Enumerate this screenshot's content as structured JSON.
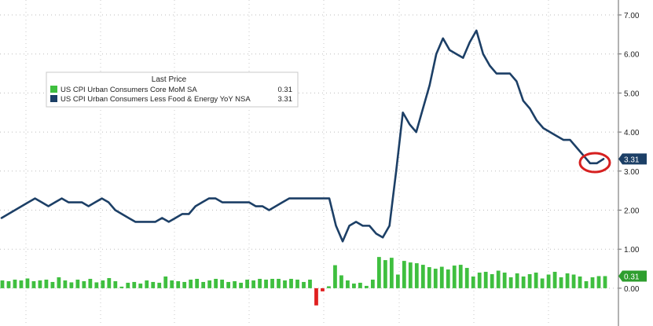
{
  "chart_data": {
    "type": "line",
    "title": "",
    "xlabel": "",
    "ylabel": "",
    "ylim": [
      -1.0,
      7.0
    ],
    "y_ticks": [
      "7.00",
      "6.00",
      "5.00",
      "4.00",
      "3.00",
      "2.00",
      "1.00",
      "0.00"
    ],
    "grid": true,
    "legend": {
      "title": "Last Price",
      "placement": "top-left",
      "entries": [
        {
          "label": "US CPI Urban Consumers Core MoM SA",
          "value": "0.31",
          "color": "#3fbf3f"
        },
        {
          "label": "US CPI Urban Consumers Less Food & Energy YoY NSA",
          "value": "3.31",
          "color": "#1c3f66"
        }
      ]
    },
    "last_value_tags": [
      {
        "text": "3.31",
        "value": 3.31,
        "color": "#1c3f66"
      },
      {
        "text": "0.31",
        "value": 0.31,
        "color": "#2e9e2e"
      }
    ],
    "annotation": {
      "type": "circle",
      "color": "#d62020",
      "near_value": 3.25
    },
    "series": [
      {
        "name": "US CPI Urban Consumers Less Food & Energy YoY NSA",
        "kind": "line",
        "color": "#1c3f66",
        "values": [
          1.8,
          1.9,
          2.0,
          2.1,
          2.2,
          2.3,
          2.2,
          2.1,
          2.2,
          2.3,
          2.2,
          2.2,
          2.2,
          2.1,
          2.2,
          2.3,
          2.2,
          2.0,
          1.9,
          1.8,
          1.7,
          1.7,
          1.7,
          1.7,
          1.8,
          1.7,
          1.8,
          1.9,
          1.9,
          2.1,
          2.2,
          2.3,
          2.3,
          2.2,
          2.2,
          2.2,
          2.2,
          2.2,
          2.1,
          2.1,
          2.0,
          2.1,
          2.2,
          2.3,
          2.3,
          2.3,
          2.3,
          2.3,
          2.3,
          2.3,
          1.6,
          1.2,
          1.6,
          1.7,
          1.6,
          1.6,
          1.4,
          1.3,
          1.6,
          3.0,
          4.5,
          4.2,
          4.0,
          4.6,
          5.2,
          6.0,
          6.4,
          6.1,
          6.0,
          5.9,
          6.3,
          6.6,
          6.0,
          5.7,
          5.5,
          5.5,
          5.5,
          5.3,
          4.8,
          4.6,
          4.3,
          4.1,
          4.0,
          3.9,
          3.8,
          3.8,
          3.6,
          3.4,
          3.2,
          3.2,
          3.31
        ]
      },
      {
        "name": "US CPI Urban Consumers Core MoM SA",
        "kind": "bar",
        "color": "#3fbf3f",
        "negative_color": "#e02020",
        "values": [
          0.2,
          0.18,
          0.22,
          0.2,
          0.25,
          0.18,
          0.2,
          0.22,
          0.16,
          0.28,
          0.2,
          0.15,
          0.22,
          0.18,
          0.24,
          0.15,
          0.2,
          0.26,
          0.18,
          0.04,
          0.14,
          0.16,
          0.12,
          0.2,
          0.16,
          0.14,
          0.3,
          0.2,
          0.18,
          0.16,
          0.22,
          0.24,
          0.16,
          0.2,
          0.24,
          0.22,
          0.16,
          0.18,
          0.14,
          0.22,
          0.2,
          0.24,
          0.22,
          0.24,
          0.24,
          0.2,
          0.24,
          0.22,
          0.16,
          0.22,
          -0.44,
          -0.08,
          0.05,
          0.59,
          0.33,
          0.2,
          0.12,
          0.14,
          0.06,
          0.22,
          0.8,
          0.72,
          0.78,
          0.35,
          0.7,
          0.66,
          0.64,
          0.6,
          0.54,
          0.5,
          0.55,
          0.48,
          0.58,
          0.6,
          0.52,
          0.3,
          0.4,
          0.42,
          0.36,
          0.45,
          0.4,
          0.28,
          0.38,
          0.3,
          0.36,
          0.4,
          0.25,
          0.35,
          0.42,
          0.28,
          0.38,
          0.35,
          0.3,
          0.18,
          0.28,
          0.31,
          0.31
        ]
      }
    ]
  }
}
